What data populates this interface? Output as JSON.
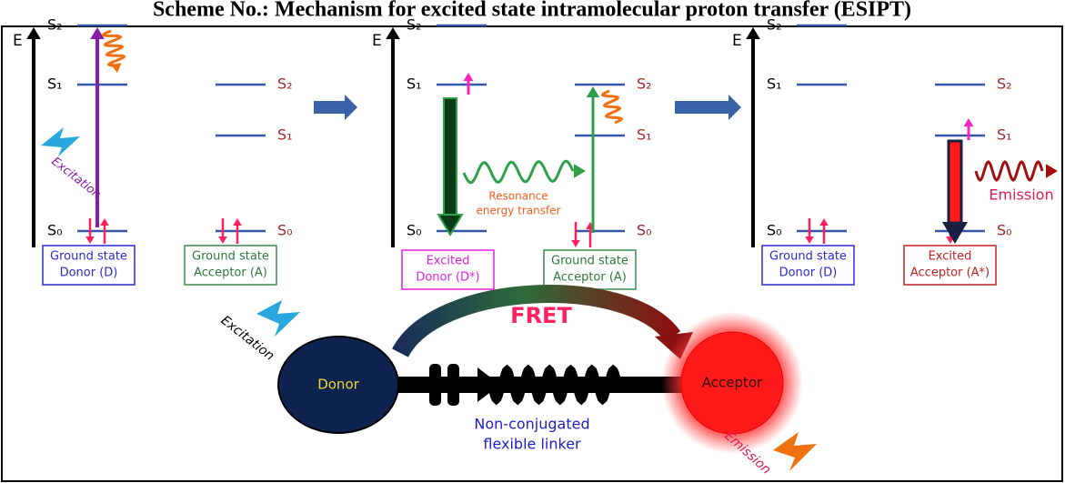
{
  "title": "Scheme No.: Mechanism for excited state intramolecular proton transfer (ESIPT)",
  "panels": [
    {
      "energy_axis": "E",
      "donor_levels": [
        "S₂",
        "S₁",
        "S₀"
      ],
      "acceptor_levels": [
        "S₂",
        "S₁",
        "S₀"
      ],
      "annotation": [
        "Excitation"
      ],
      "donor_box": [
        "Ground state",
        "Donor (D)"
      ],
      "acceptor_box": [
        "Ground state",
        "Acceptor (A)"
      ]
    },
    {
      "energy_axis": "E",
      "donor_levels": [
        "S₂",
        "S₁",
        "S₀"
      ],
      "acceptor_levels": [
        "S₂",
        "S₁",
        "S₀"
      ],
      "annotation": [
        "Resonance",
        "energy transfer"
      ],
      "donor_box": [
        "Excited",
        "Donor (D*)"
      ],
      "acceptor_box": [
        "Ground state",
        "Acceptor (A)"
      ]
    },
    {
      "energy_axis": "E",
      "donor_levels": [
        "S₂",
        "S₁",
        "S₀"
      ],
      "acceptor_levels": [
        "S₂",
        "S₁",
        "S₀"
      ],
      "annotation": [
        "Emission"
      ],
      "donor_box": [
        "Ground state",
        "Donor (D)"
      ],
      "acceptor_box": [
        "Excited",
        "Acceptor (A*)"
      ]
    }
  ],
  "fret": {
    "label": "FRET",
    "donor": "Donor",
    "acceptor": "Acceptor",
    "excitation": "Excitation",
    "emission": "Emission",
    "linker": [
      "Non-conjugated",
      "flexible linker"
    ]
  }
}
